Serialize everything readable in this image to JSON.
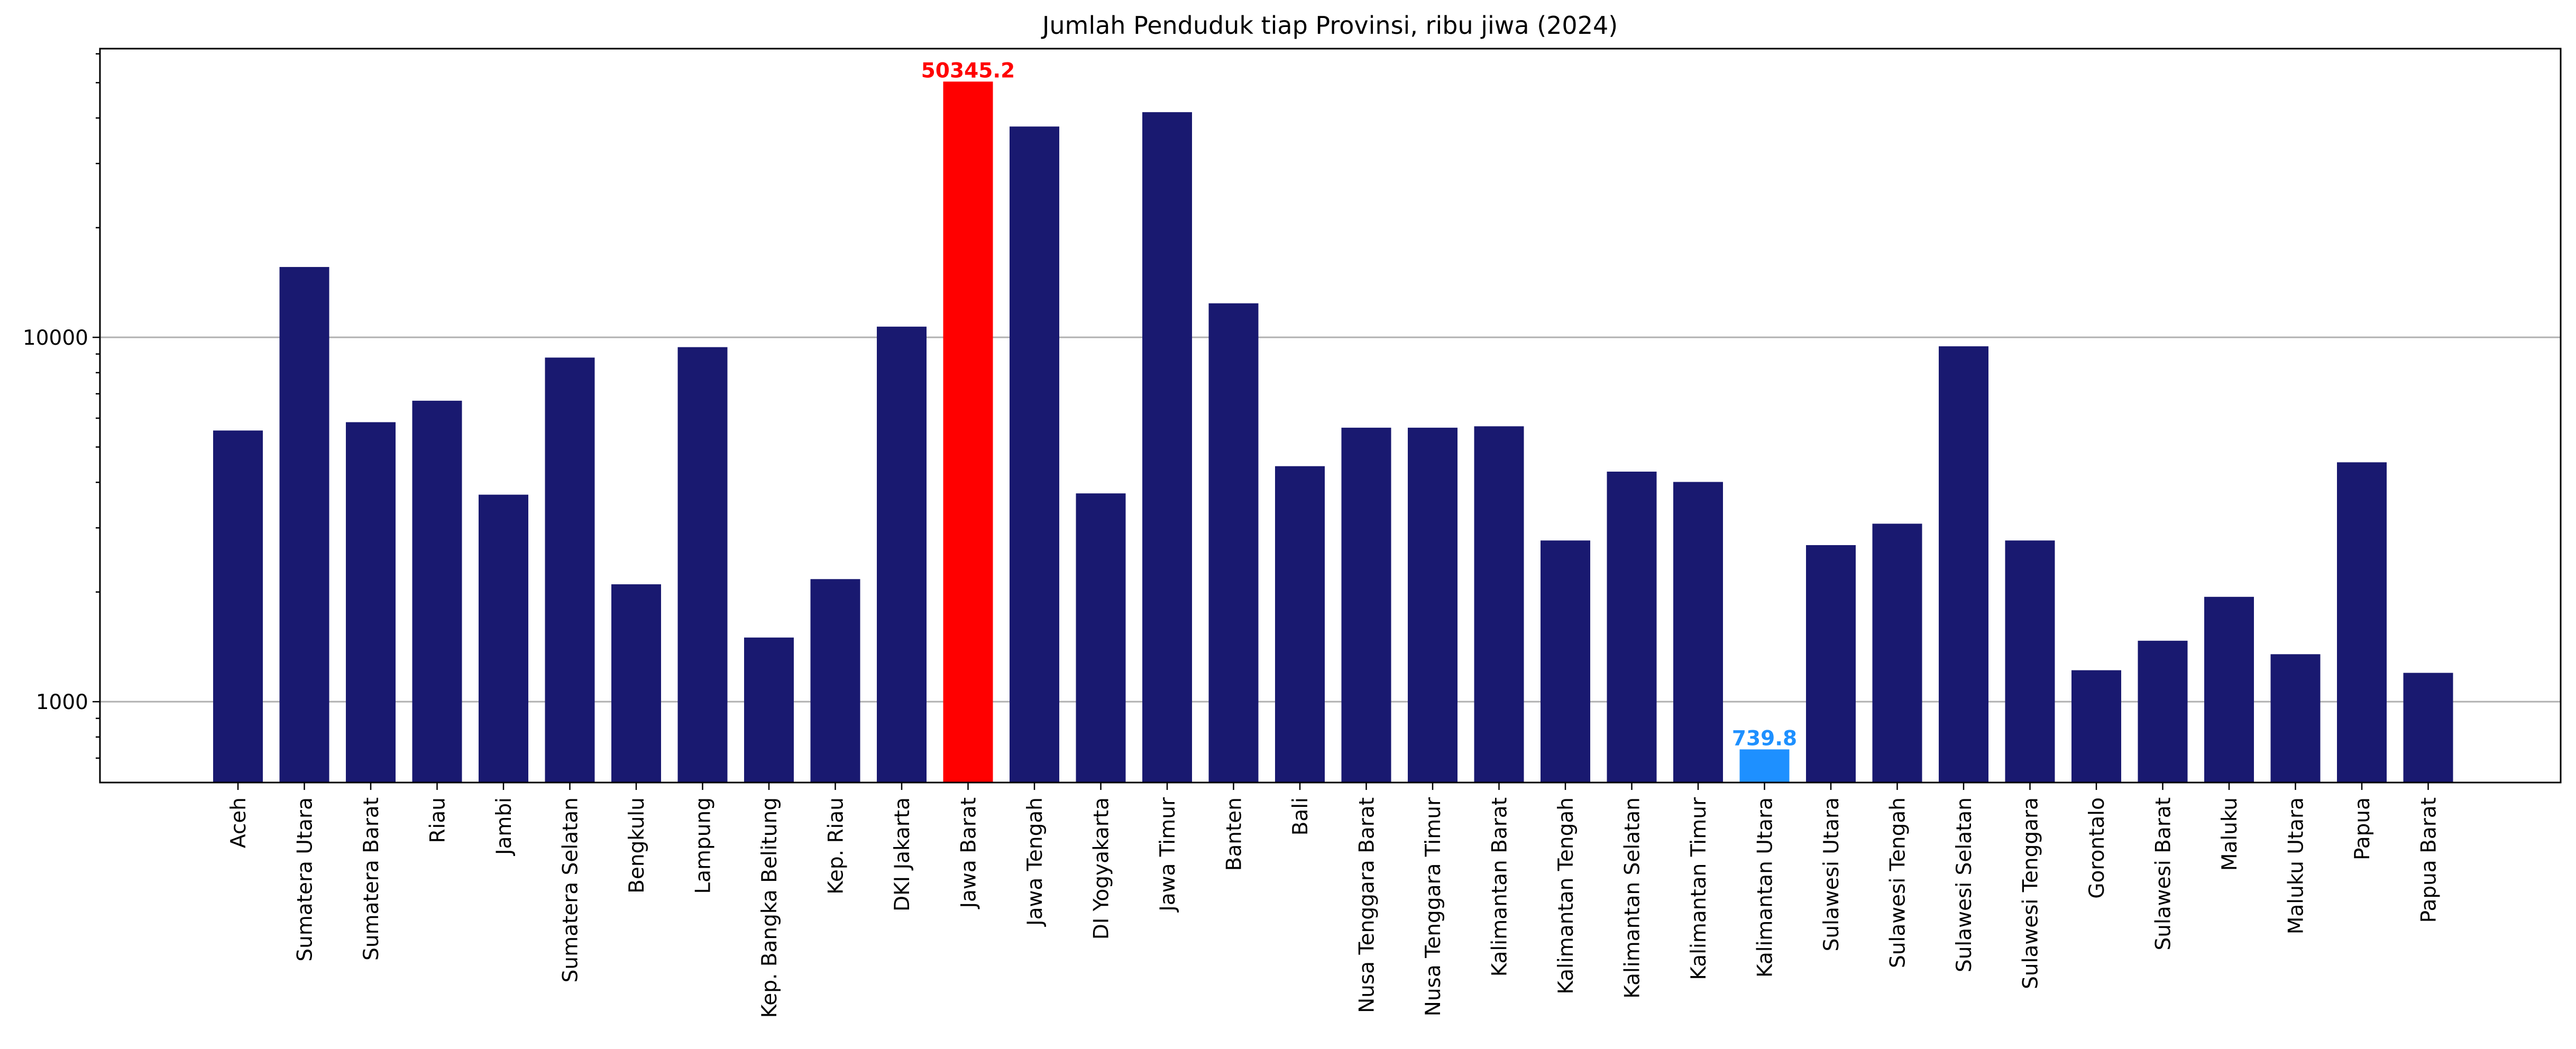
{
  "chart_data": {
    "type": "bar",
    "title": "Jumlah Penduduk tiap Provinsi, ribu jiwa (2024)",
    "xlabel": "",
    "ylabel": "",
    "yscale": "log",
    "ylim": [
      600,
      62000
    ],
    "yticks": [
      1000,
      10000
    ],
    "ytick_labels": [
      "1000",
      "10000"
    ],
    "grid": "y-major",
    "categories": [
      "Aceh",
      "Sumatera Utara",
      "Sumatera Barat",
      "Riau",
      "Jambi",
      "Sumatera Selatan",
      "Bengkulu",
      "Lampung",
      "Kep. Bangka Belitung",
      "Kep. Riau",
      "DKI Jakarta",
      "Jawa Barat",
      "Jawa Tengah",
      "DI Yogyakarta",
      "Jawa Timur",
      "Banten",
      "Bali",
      "Nusa Tenggara Barat",
      "Nusa Tenggara Timur",
      "Kalimantan Barat",
      "Kalimantan Tengah",
      "Kalimantan Selatan",
      "Kalimantan Timur",
      "Kalimantan Utara",
      "Sulawesi Utara",
      "Sulawesi Tengah",
      "Sulawesi Selatan",
      "Sulawesi Tenggara",
      "Gorontalo",
      "Sulawesi Barat",
      "Maluku",
      "Maluku Utara",
      "Papua",
      "Papua Barat"
    ],
    "values": [
      5550,
      15600,
      5850,
      6700,
      3700,
      8800,
      2100,
      9400,
      1500,
      2170,
      10700,
      50345.2,
      37900,
      3730,
      41500,
      12400,
      4430,
      5650,
      5650,
      5700,
      2770,
      4280,
      4010,
      739.8,
      2690,
      3080,
      9450,
      2770,
      1220,
      1470,
      1940,
      1350,
      4540,
      1200
    ],
    "colors": {
      "default": "#191970",
      "max": "#ff0000",
      "min": "#1e90ff"
    },
    "annotations": [
      {
        "category": "Jawa Barat",
        "text": "50345.2",
        "color": "#ff0000"
      },
      {
        "category": "Kalimantan Utara",
        "text": "739.8",
        "color": "#1e90ff"
      }
    ]
  }
}
